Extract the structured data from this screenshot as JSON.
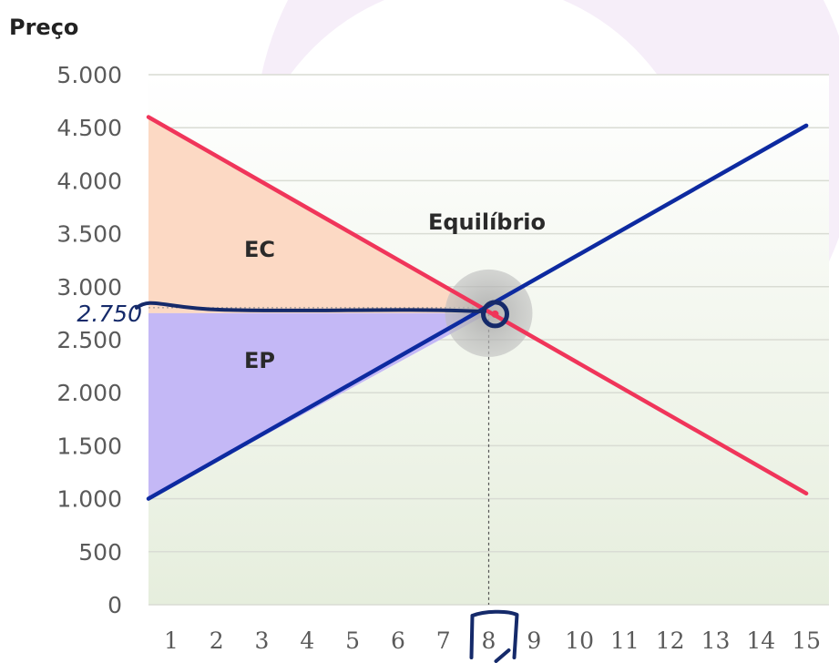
{
  "chart_data": {
    "type": "line",
    "ylabel": "Preço",
    "xlabel": "",
    "xlim": [
      0.5,
      15.5
    ],
    "ylim": [
      0,
      5000
    ],
    "y_ticks": [
      0,
      500,
      1000,
      1500,
      2000,
      2500,
      3000,
      3500,
      4000,
      4500,
      5000
    ],
    "y_tick_labels": [
      "0",
      "500",
      "1.000",
      "1.500",
      "2.000",
      "2.500",
      "3.000",
      "3.500",
      "4.000",
      "4.500",
      "5.000"
    ],
    "x_ticks": [
      1,
      2,
      3,
      4,
      5,
      6,
      7,
      8,
      9,
      10,
      11,
      12,
      13,
      14,
      15
    ],
    "x_tick_labels": [
      "1",
      "2",
      "3",
      "4",
      "5",
      "6",
      "7",
      "8",
      "9",
      "10",
      "11",
      "12",
      "13",
      "14",
      "15"
    ],
    "grid": true,
    "series": [
      {
        "color": "#f0355a",
        "x": [
          0.5,
          15
        ],
        "y": [
          4600,
          1050
        ]
      },
      {
        "color": "#0d2aa0",
        "x": [
          0.5,
          15
        ],
        "y": [
          1000,
          4520
        ]
      }
    ],
    "equilibrium": {
      "x": 8,
      "y": 2750,
      "label": "Equilíbrio",
      "price_annotation": "2.750"
    },
    "areas": [
      {
        "label": "EC",
        "color": "#fcd9c4"
      },
      {
        "label": "EP",
        "color": "#c4b8f6"
      }
    ],
    "highlighted_tick": "8"
  }
}
